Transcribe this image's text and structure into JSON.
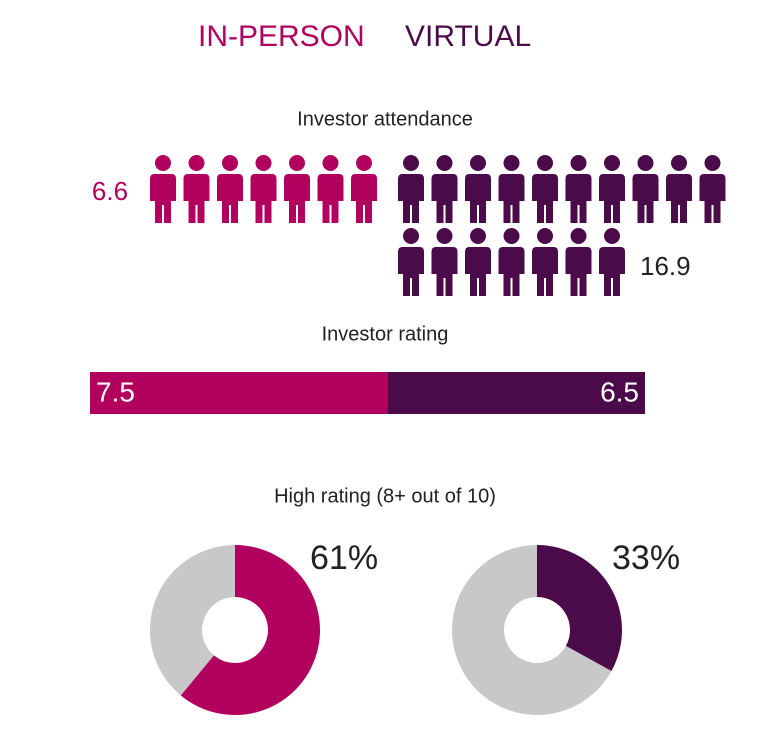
{
  "legend": [
    {
      "name": "IN-PERSON",
      "color": "#b1005d"
    },
    {
      "name": "VIRTUAL",
      "color": "#4b0b4a"
    }
  ],
  "attendance": {
    "title": "Investor attendance",
    "values": [
      6.6,
      16.9
    ]
  },
  "rating": {
    "title": "Investor rating",
    "values": [
      7.5,
      6.5
    ]
  },
  "high_rating": {
    "title": "High rating (8+ out of 10)",
    "values": [
      61,
      33
    ],
    "value_labels": [
      "61%",
      "33%"
    ],
    "rest_color": "#c8c8c8"
  }
}
